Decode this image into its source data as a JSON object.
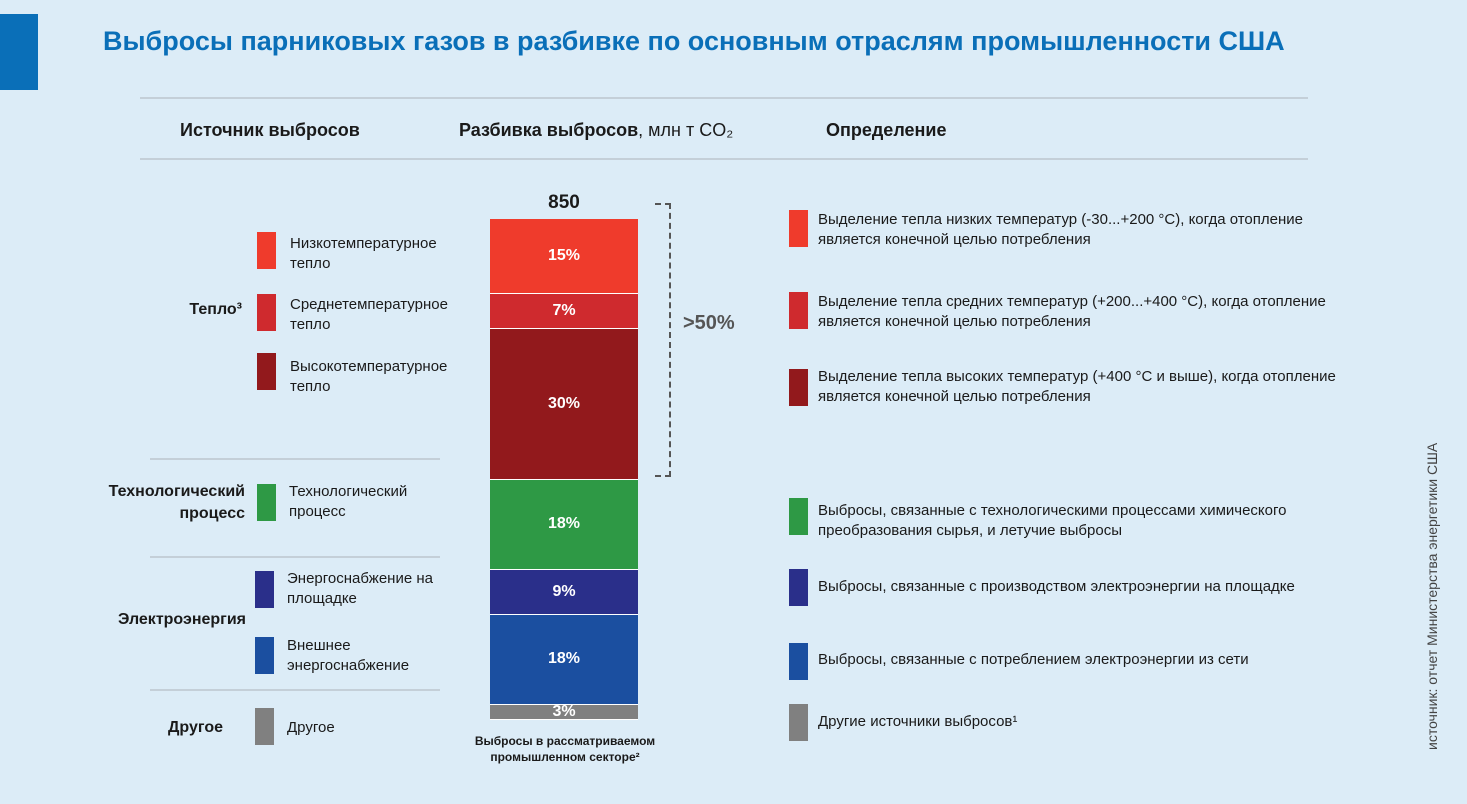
{
  "title": "Выбросы парниковых газов в разбивке по основным отраслям промышленности США",
  "headers": {
    "source": "Источник выбросов",
    "breakdown": "Разбивка выбросов",
    "breakdown_unit": ", млн т CO₂",
    "definition": "Определение"
  },
  "categories": {
    "heat": "Тепло³",
    "process_line1": "Технологический",
    "process_line2": "процесс",
    "electricity": "Электроэнергия",
    "other": "Другое"
  },
  "sources": {
    "low_line1": "Низкотемпературное",
    "low_line2": "тепло",
    "mid_line1": "Среднетемпературное",
    "mid_line2": "тепло",
    "high_line1": "Высокотемпературное",
    "high_line2": "тепло",
    "process_line1": "Технологический",
    "process_line2": "процесс",
    "onsite_line1": "Энергоснабжение на",
    "onsite_line2": "площадке",
    "external_line1": "Внешнее",
    "external_line2": "энергоснабжение",
    "other": "Другое"
  },
  "definitions": {
    "low_line1": "Выделение тепла низких температур (-30...+200 °C), когда отопление",
    "low_line2": "является конечной целью потребления",
    "mid_line1": "Выделение тепла средних температур (+200...+400 °C), когда отопление",
    "mid_line2": "является конечной целью потребления",
    "high_line1": "Выделение тепла высоких температур (+400 °C и выше), когда отопление",
    "high_line2": "является конечной целью потребления",
    "process_line1": "Выбросы, связанные с технологическими процессами химического",
    "process_line2": "преобразования сырья, и летучие выбросы",
    "onsite": "Выбросы, связанные с производством электроэнергии на площадке",
    "external": "Выбросы, связанные с потреблением электроэнергии из сети",
    "other": "Другие источники выбросов¹"
  },
  "bracket_label": ">50%",
  "bar_caption_line1": "Выбросы в рассматриваемом",
  "bar_caption_line2": "промышленном секторе²",
  "source_note": "источник: отчет Министерства энергетики США",
  "chart_data": {
    "type": "bar",
    "stacked": true,
    "total": 850,
    "total_label": "850",
    "unit": "млн т CO₂",
    "categories": [
      "Выбросы в рассматриваемом промышленном секторе²"
    ],
    "series": [
      {
        "name": "Низкотемпературное тепло",
        "value": 15,
        "label": "15%",
        "color": "#ef3b2c"
      },
      {
        "name": "Среднетемпературное тепло",
        "value": 7,
        "label": "7%",
        "color": "#cf2a2e"
      },
      {
        "name": "Высокотемпературное тепло",
        "value": 30,
        "label": "30%",
        "color": "#92191c"
      },
      {
        "name": "Технологический процесс",
        "value": 18,
        "label": "18%",
        "color": "#2e9945"
      },
      {
        "name": "Энергоснабжение на площадке",
        "value": 9,
        "label": "9%",
        "color": "#2a2f8a"
      },
      {
        "name": "Внешнее энергоснабжение",
        "value": 18,
        "label": "18%",
        "color": "#1b4fa0"
      },
      {
        "name": "Другое",
        "value": 3,
        "label": "3%",
        "color": "#808080"
      }
    ]
  }
}
